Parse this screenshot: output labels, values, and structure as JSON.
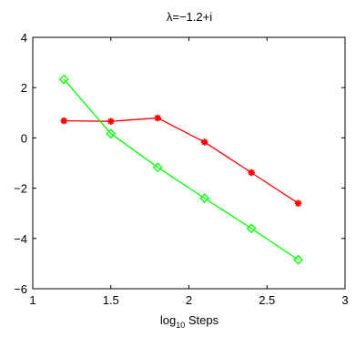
{
  "chart_data": {
    "type": "line",
    "title": "λ=−1.2+i",
    "xlabel": {
      "base": "log",
      "sub": "10",
      "rest": " Steps"
    },
    "ylabel": "",
    "xlim": [
      1,
      3
    ],
    "ylim": [
      -6,
      4
    ],
    "xticks": [
      1,
      1.5,
      2,
      2.5,
      3
    ],
    "xtick_labels": [
      "1",
      "1.5",
      "2",
      "2.5",
      "3"
    ],
    "yticks": [
      -6,
      -4,
      -2,
      0,
      2,
      4
    ],
    "ytick_labels": [
      "−6",
      "−4",
      "−2",
      "0",
      "2",
      "4"
    ],
    "grid": false,
    "series": [
      {
        "marker": "asterisk",
        "color": "#ff0000",
        "x": [
          1.2,
          1.5,
          1.8,
          2.1,
          2.4,
          2.7
        ],
        "y": [
          0.68,
          0.66,
          0.79,
          -0.17,
          -1.38,
          -2.6
        ]
      },
      {
        "marker": "diamond",
        "color": "#00ff00",
        "x": [
          1.2,
          1.5,
          1.8,
          2.1,
          2.4,
          2.7
        ],
        "y": [
          2.33,
          0.17,
          -1.17,
          -2.4,
          -3.6,
          -4.85
        ]
      }
    ]
  }
}
